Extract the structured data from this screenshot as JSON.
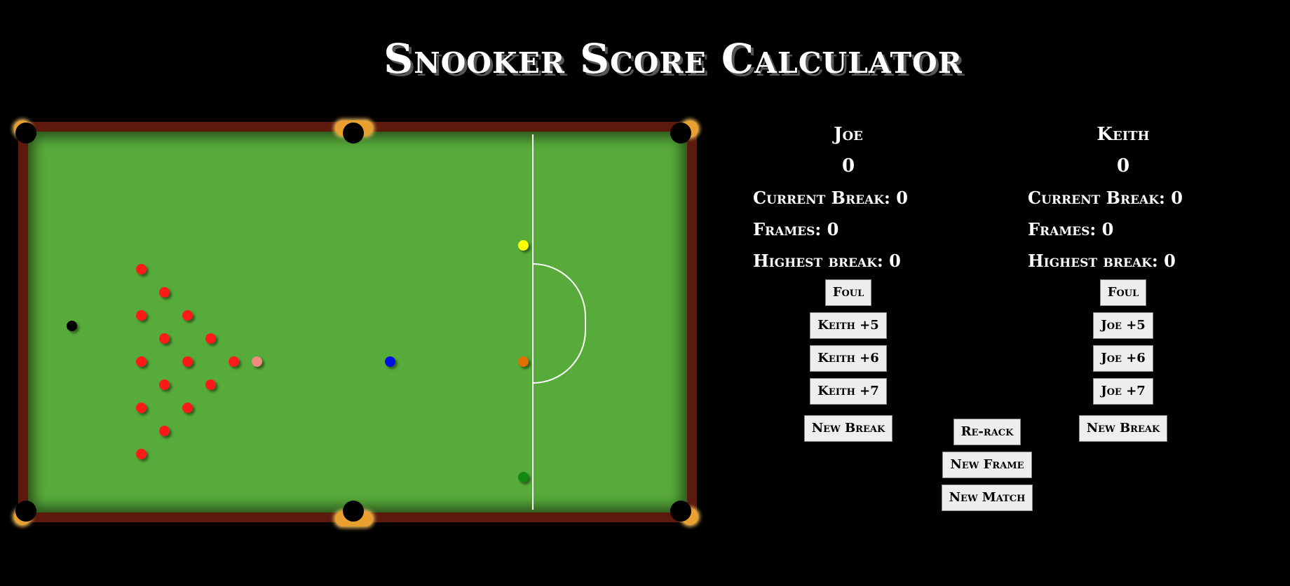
{
  "title": "Snooker Score Calculator",
  "players": [
    {
      "name": "Joe",
      "score": "0",
      "current_break": "Current Break: 0",
      "frames": "Frames: 0",
      "highest_break": "Highest break: 0",
      "foul": "Foul",
      "bonus5": "Keith +5",
      "bonus6": "Keith +6",
      "bonus7": "Keith +7",
      "new_break": "New Break"
    },
    {
      "name": "Keith",
      "score": "0",
      "current_break": "Current Break: 0",
      "frames": "Frames: 0",
      "highest_break": "Highest break: 0",
      "foul": "Foul",
      "bonus5": "Joe +5",
      "bonus6": "Joe +6",
      "bonus7": "Joe +7",
      "new_break": "New Break"
    }
  ],
  "controls": {
    "rerack": "Re-rack",
    "new_frame": "New Frame",
    "new_match": "New Match"
  },
  "colors": {
    "baize": "#57ab3a",
    "cushion": "#5c1a0c",
    "red": "#ff1a1a",
    "yellow": "#ffff00",
    "green": "#118811",
    "brown": "#e07000",
    "blue": "#0010e0",
    "pink": "#f08c80",
    "black": "#000000"
  }
}
